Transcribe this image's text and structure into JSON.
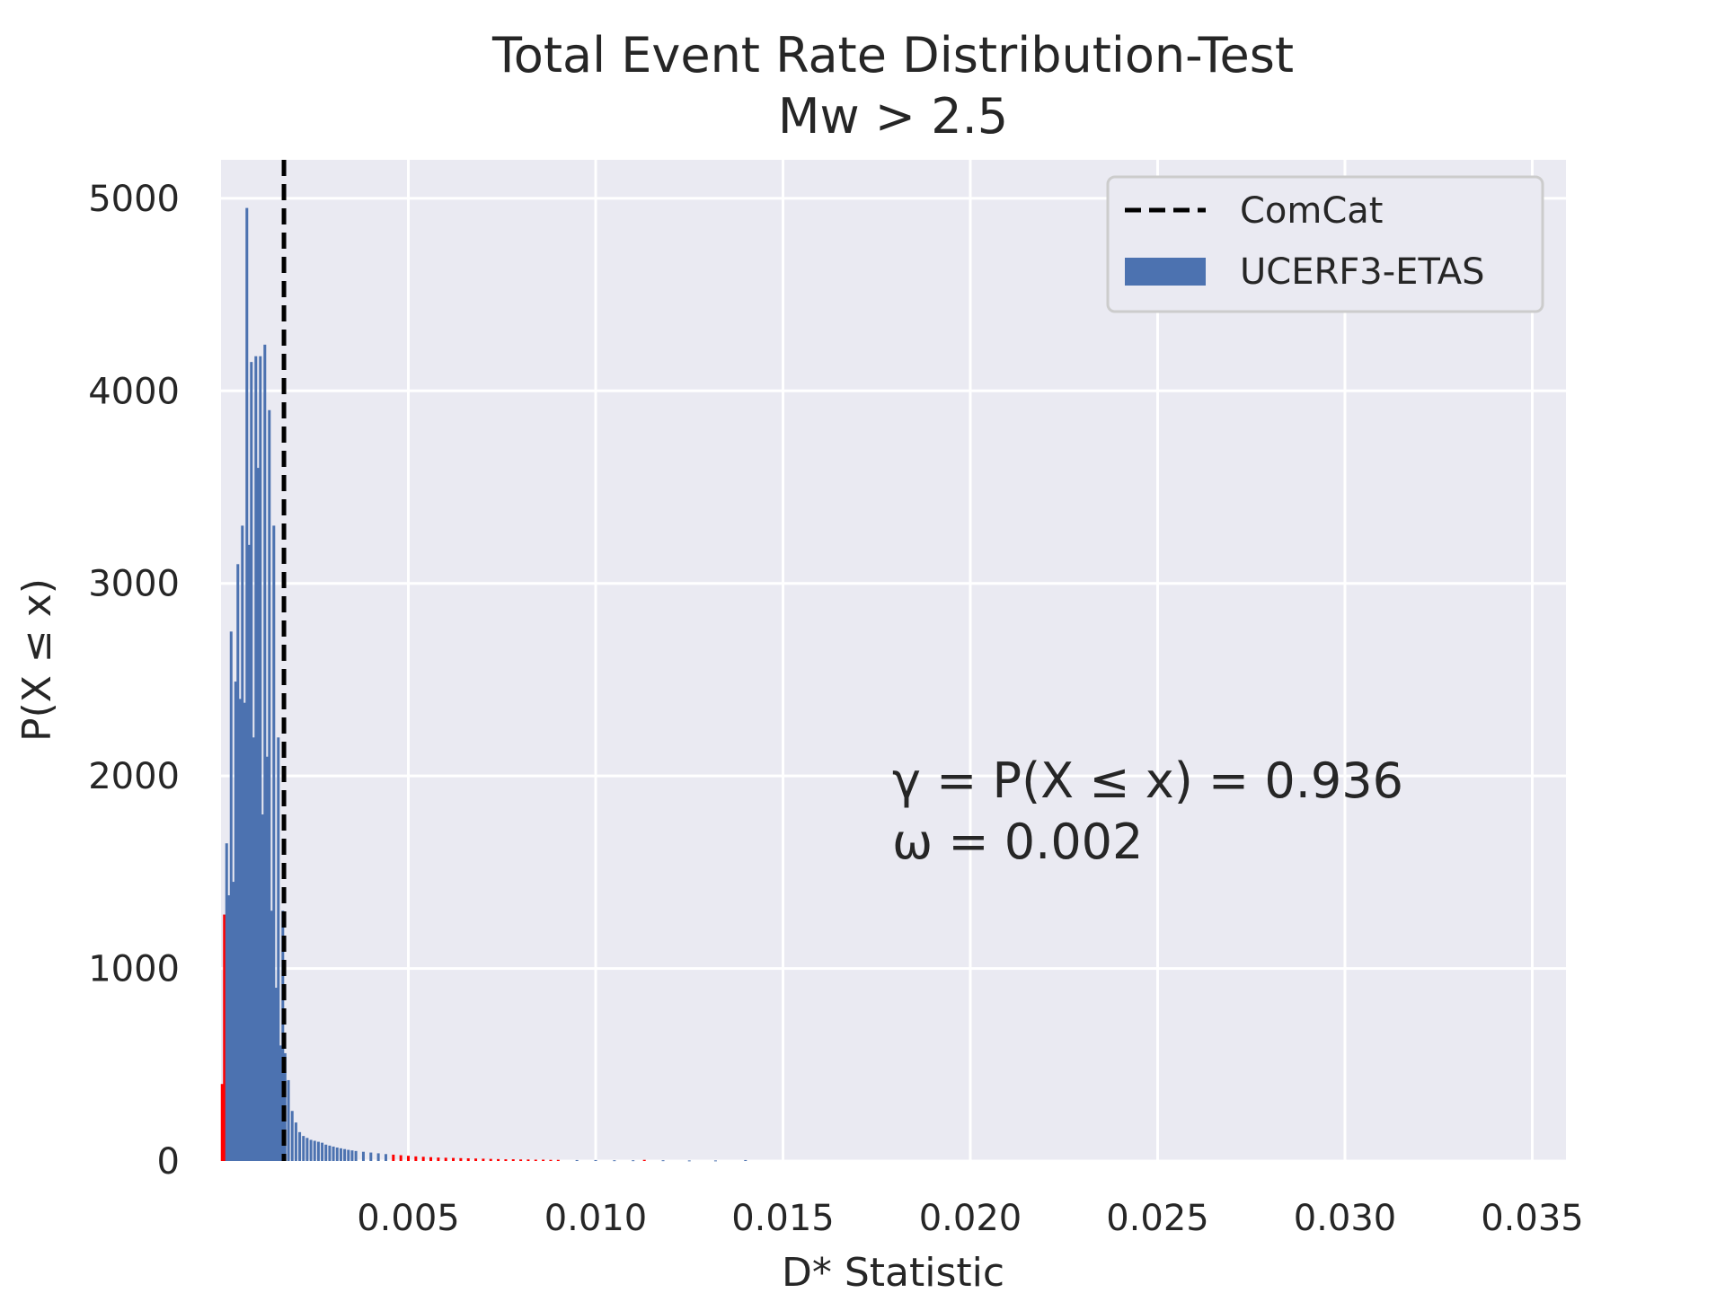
{
  "chart_data": {
    "type": "bar",
    "title_line1": "Total Event Rate Distribution-Test",
    "title_line2": "Mw > 2.5",
    "xlabel": "D* Statistic",
    "ylabel": "P(X  ≤  x)",
    "xlim": [
      0.0,
      0.0359
    ],
    "ylim": [
      0,
      5200
    ],
    "xticks": [
      0.005,
      0.01,
      0.015,
      0.02,
      0.025,
      0.03,
      0.035
    ],
    "xtick_labels": [
      "0.005",
      "0.010",
      "0.015",
      "0.020",
      "0.025",
      "0.030",
      "0.035"
    ],
    "yticks": [
      0,
      1000,
      2000,
      3000,
      4000,
      5000
    ],
    "ytick_labels": [
      "0",
      "1000",
      "2000",
      "3000",
      "4000",
      "5000"
    ],
    "grid": true,
    "legend_position": "top-right",
    "observed_line": {
      "name": "ComCat",
      "x": 0.00168,
      "color": "#000000",
      "style": "dashed"
    },
    "series": [
      {
        "name": "UCERF3-ETAS",
        "color": "#4c72b0",
        "highlight_color": "#ff0000",
        "x": [
          3e-05,
          9e-05,
          0.00015,
          0.00021,
          0.00027,
          0.00033,
          0.00039,
          0.00045,
          0.00051,
          0.00057,
          0.00063,
          0.00069,
          0.00075,
          0.00081,
          0.00087,
          0.00093,
          0.00099,
          0.00105,
          0.00111,
          0.00117,
          0.00123,
          0.00129,
          0.00135,
          0.00141,
          0.00147,
          0.00153,
          0.00159,
          0.00165,
          0.00171,
          0.0018,
          0.0019,
          0.002,
          0.0021,
          0.0022,
          0.0023,
          0.0024,
          0.0025,
          0.0026,
          0.0027,
          0.0028,
          0.0029,
          0.003,
          0.0031,
          0.0032,
          0.0033,
          0.0034,
          0.0035,
          0.0036,
          0.0038,
          0.004,
          0.0042,
          0.0044,
          0.0046,
          0.0048,
          0.005,
          0.0052,
          0.0054,
          0.0056,
          0.0058,
          0.006,
          0.0062,
          0.0064,
          0.0066,
          0.0068,
          0.007,
          0.0072,
          0.0074,
          0.0076,
          0.0078,
          0.008,
          0.0082,
          0.0084,
          0.0086,
          0.0088,
          0.009,
          0.0095,
          0.01,
          0.0105,
          0.011,
          0.0113,
          0.0118,
          0.0125,
          0.0132,
          0.014
        ],
        "values": [
          400,
          1280,
          1650,
          1380,
          2750,
          1450,
          2490,
          3100,
          2400,
          3300,
          2380,
          4950,
          3200,
          4150,
          2200,
          4180,
          3600,
          4180,
          1800,
          4240,
          2100,
          3900,
          1300,
          3300,
          900,
          2200,
          600,
          1300,
          560,
          420,
          260,
          200,
          150,
          130,
          120,
          110,
          105,
          100,
          95,
          85,
          80,
          75,
          70,
          66,
          62,
          58,
          55,
          52,
          48,
          44,
          40,
          36,
          33,
          30,
          27,
          24,
          22,
          20,
          18,
          17,
          16,
          15,
          14,
          13,
          12,
          11,
          10,
          9,
          9,
          8,
          8,
          7,
          7,
          6,
          6,
          5,
          5,
          4,
          4,
          6,
          4,
          3,
          3,
          5
        ],
        "highlight_index": [
          0,
          1,
          52,
          53,
          54,
          55,
          56,
          57,
          58,
          59,
          60,
          61,
          62,
          63,
          64,
          65,
          66,
          67,
          68,
          69,
          70,
          71,
          72,
          73,
          74,
          79
        ]
      }
    ],
    "annotation_line1": "γ = P(X ≤ x) = 0.936",
    "annotation_line2": "ω = 0.002"
  }
}
